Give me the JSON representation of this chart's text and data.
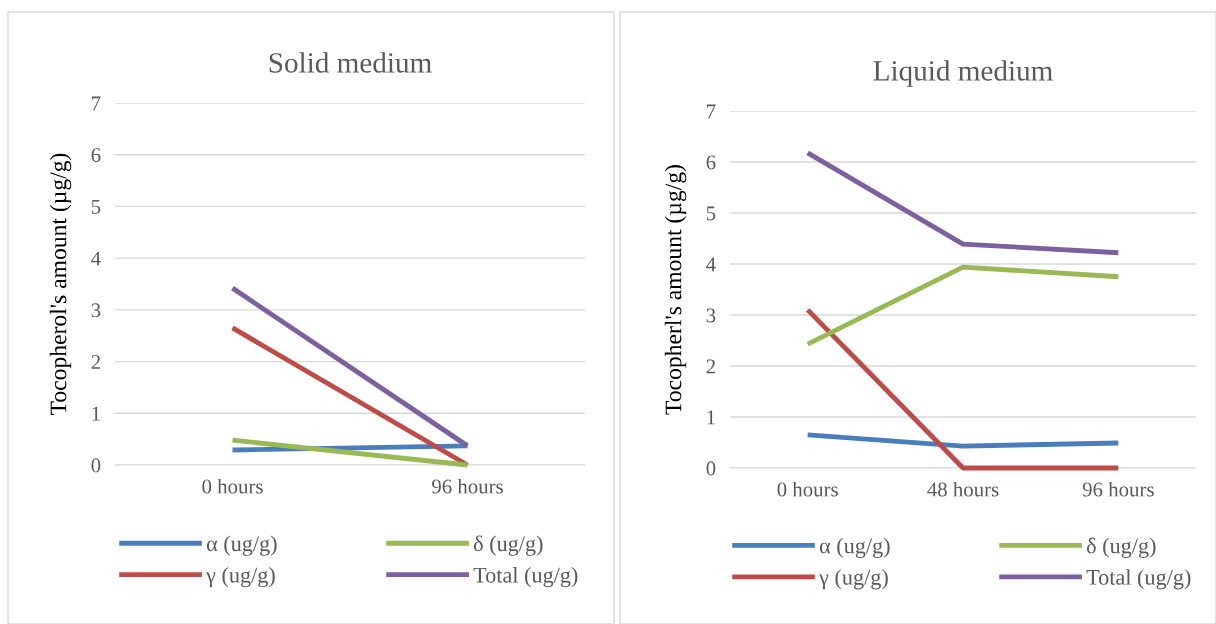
{
  "chart_data": [
    {
      "type": "line",
      "title": "Solid medium",
      "ylabel": "Tocopherol's amount (µg/g)",
      "categories": [
        "0 hours",
        "96 hours"
      ],
      "ylim": [
        0,
        7
      ],
      "yticks": [
        0,
        1,
        2,
        3,
        4,
        5,
        6,
        7
      ],
      "grid": "y",
      "legend": "bottom",
      "marker": "none",
      "line_style": "solid",
      "series": [
        {
          "name": "α (ug/g)",
          "color": "#4a7ebb",
          "values": [
            0.29,
            0.37
          ]
        },
        {
          "name": "γ (ug/g)",
          "color": "#be4b48",
          "values": [
            2.65,
            0.0
          ]
        },
        {
          "name": "δ (ug/g)",
          "color": "#98b954",
          "values": [
            0.48,
            0.0
          ]
        },
        {
          "name": "Total (ug/g)",
          "color": "#7d60a0",
          "values": [
            3.42,
            0.37
          ]
        }
      ]
    },
    {
      "type": "line",
      "title": "Liquid medium",
      "ylabel": "Tocopherl's amount (µg/g)",
      "categories": [
        "0 hours",
        "48 hours",
        "96 hours"
      ],
      "ylim": [
        0,
        7
      ],
      "yticks": [
        0,
        1,
        2,
        3,
        4,
        5,
        6,
        7
      ],
      "grid": "y",
      "legend": "bottom",
      "marker": "none",
      "line_style": "solid",
      "series": [
        {
          "name": "α (ug/g)",
          "color": "#4a7ebb",
          "values": [
            0.65,
            0.43,
            0.49
          ]
        },
        {
          "name": "γ (ug/g)",
          "color": "#be4b48",
          "values": [
            3.1,
            0.0,
            0.0
          ]
        },
        {
          "name": "δ (ug/g)",
          "color": "#98b954",
          "values": [
            2.43,
            3.94,
            3.75
          ]
        },
        {
          "name": "Total (ug/g)",
          "color": "#7d60a0",
          "values": [
            6.18,
            4.39,
            4.22
          ]
        }
      ]
    }
  ]
}
